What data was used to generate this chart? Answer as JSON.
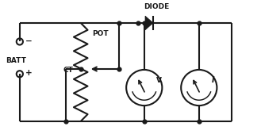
{
  "bg_color": "#ffffff",
  "line_color": "#1a1a1a",
  "lw": 1.5,
  "fig_w": 3.29,
  "fig_h": 1.74,
  "dpi": 100,
  "labels": {
    "batt": "BATT",
    "ct": "CT",
    "pot": "POT",
    "diode": "DIODE",
    "V": "V",
    "I": "I"
  },
  "xlim": [
    0,
    10
  ],
  "ylim": [
    0,
    5.5
  ]
}
